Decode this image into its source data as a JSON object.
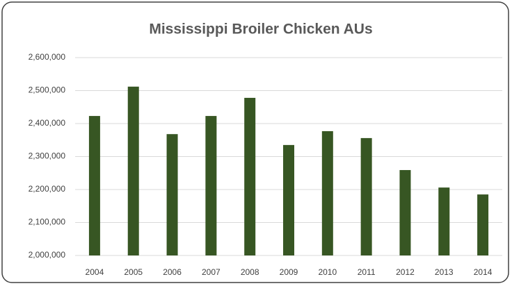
{
  "chart_data": {
    "type": "bar",
    "title": "Mississippi Broiler Chicken AUs",
    "categories": [
      "2004",
      "2005",
      "2006",
      "2007",
      "2008",
      "2009",
      "2010",
      "2011",
      "2012",
      "2013",
      "2014"
    ],
    "values": [
      2423000,
      2512000,
      2368000,
      2423000,
      2478000,
      2335000,
      2377000,
      2356000,
      2259000,
      2206000,
      2185000
    ],
    "color": "#375623",
    "ylim": [
      2000000,
      2600000
    ],
    "yticks": [
      {
        "value": 2000000,
        "label": "2,000,000"
      },
      {
        "value": 2100000,
        "label": "2,100,000"
      },
      {
        "value": 2200000,
        "label": "2,200,000"
      },
      {
        "value": 2300000,
        "label": "2,300,000"
      },
      {
        "value": 2400000,
        "label": "2,400,000"
      },
      {
        "value": 2500000,
        "label": "2,500,000"
      },
      {
        "value": 2600000,
        "label": "2,600,000"
      }
    ],
    "grid": true
  }
}
